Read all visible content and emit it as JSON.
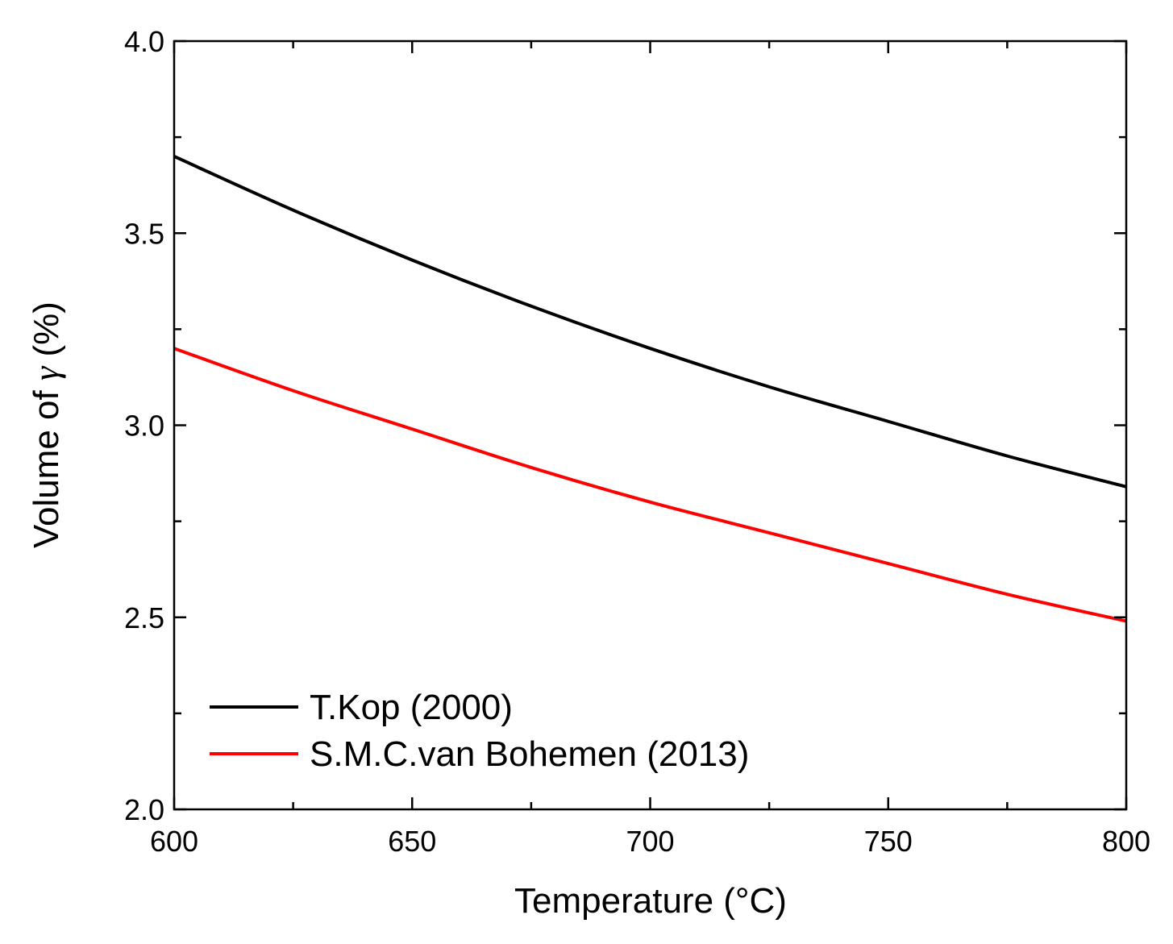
{
  "chart_data": {
    "type": "line",
    "title": "",
    "xlabel": "Temperature (°C)",
    "ylabel": {
      "prefix": "Volume of ",
      "symbol": "γ",
      "suffix": " (%)"
    },
    "xlim": [
      600,
      800
    ],
    "ylim": [
      2.0,
      4.0
    ],
    "x_ticks": [
      600,
      650,
      700,
      750,
      800
    ],
    "x_tick_labels": [
      "600",
      "650",
      "700",
      "750",
      "800"
    ],
    "x_minor_ticks": [
      625,
      675,
      725,
      775
    ],
    "y_ticks": [
      2.0,
      2.5,
      3.0,
      3.5,
      4.0
    ],
    "y_tick_labels": [
      "2.0",
      "2.5",
      "3.0",
      "3.5",
      "4.0"
    ],
    "y_minor_ticks": [
      2.25,
      2.75,
      3.25,
      3.75
    ],
    "grid": false,
    "legend_position": "bottom-left",
    "x": [
      600,
      625,
      650,
      675,
      700,
      725,
      750,
      775,
      800
    ],
    "series": [
      {
        "name": "T.Kop (2000)",
        "color": "#000000",
        "values": [
          3.7,
          3.56,
          3.43,
          3.31,
          3.2,
          3.1,
          3.01,
          2.92,
          2.84
        ]
      },
      {
        "name": "S.M.C.van Bohemen (2013)",
        "color": "#ff0000",
        "values": [
          3.2,
          3.09,
          2.99,
          2.89,
          2.8,
          2.72,
          2.64,
          2.56,
          2.49
        ]
      }
    ]
  }
}
